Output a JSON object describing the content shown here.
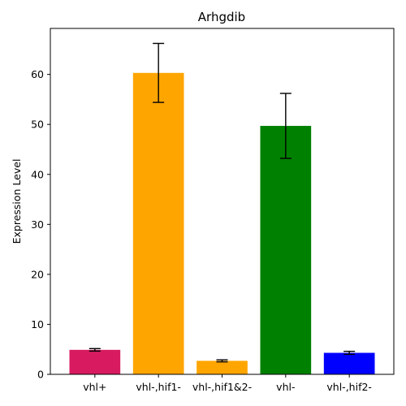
{
  "chart_data": {
    "type": "bar",
    "title": "Arhgdib",
    "xlabel": "",
    "ylabel": "Expression Level",
    "categories": [
      "vhl+",
      "vhl-,hif1-",
      "vhl-,hif1&2-",
      "vhl-",
      "vhl-,hif2-"
    ],
    "values": [
      4.9,
      60.3,
      2.7,
      49.7,
      4.3
    ],
    "errors": [
      0.25,
      5.9,
      0.2,
      6.5,
      0.3
    ],
    "colors": [
      "#d81b60",
      "#ffa500",
      "#ffa500",
      "#008000",
      "#0000ff"
    ],
    "ylim": [
      0,
      69.2
    ],
    "yticks": [
      0,
      10,
      20,
      30,
      40,
      50,
      60
    ],
    "grid": false,
    "legend": "none"
  }
}
